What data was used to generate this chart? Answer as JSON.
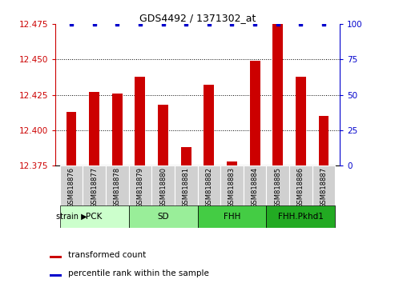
{
  "title": "GDS4492 / 1371302_at",
  "samples": [
    "GSM818876",
    "GSM818877",
    "GSM818878",
    "GSM818879",
    "GSM818880",
    "GSM818881",
    "GSM818882",
    "GSM818883",
    "GSM818884",
    "GSM818885",
    "GSM818886",
    "GSM818887"
  ],
  "red_values": [
    12.413,
    12.427,
    12.426,
    12.438,
    12.418,
    12.388,
    12.432,
    12.378,
    12.449,
    12.475,
    12.438,
    12.41
  ],
  "ylim_left": [
    12.375,
    12.475
  ],
  "ylim_right": [
    0,
    100
  ],
  "yticks_left": [
    12.375,
    12.4,
    12.425,
    12.45,
    12.475
  ],
  "yticks_right": [
    0,
    25,
    50,
    75,
    100
  ],
  "group_defs": [
    {
      "label": "PCK",
      "start": 0,
      "end": 2,
      "color": "#ccffcc"
    },
    {
      "label": "SD",
      "start": 3,
      "end": 5,
      "color": "#99ee99"
    },
    {
      "label": "FHH",
      "start": 6,
      "end": 8,
      "color": "#44cc44"
    },
    {
      "label": "FHH.Pkhd1",
      "start": 9,
      "end": 11,
      "color": "#22aa22"
    }
  ],
  "legend_red": "transformed count",
  "legend_blue": "percentile rank within the sample",
  "red_color": "#cc0000",
  "blue_color": "#0000cc",
  "left_axis_color": "#cc0000",
  "right_axis_color": "#0000cc",
  "bar_width": 0.45
}
